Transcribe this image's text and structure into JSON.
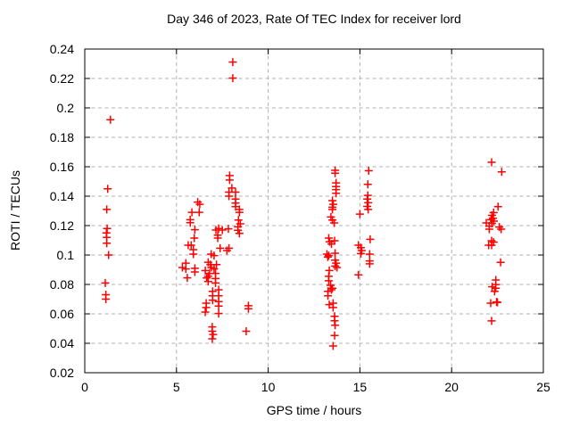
{
  "title": "Day 346 of 2023, Rate Of TEC Index for receiver lord",
  "colors": {
    "marker": "#ff0000",
    "axis": "#000000",
    "grid": "#b0b0b0",
    "background": "#ffffff"
  },
  "chart_data": {
    "type": "scatter",
    "title": "Day 346 of 2023, Rate Of TEC Index for receiver lord",
    "xlabel": "GPS time / hours",
    "ylabel": "ROTI / TECUs",
    "xlim": [
      0,
      25
    ],
    "ylim": [
      0.02,
      0.24
    ],
    "xticks": [
      0,
      5,
      10,
      15,
      20,
      25
    ],
    "xtick_labels": [
      "0",
      "5",
      "10",
      "15",
      "20",
      "25"
    ],
    "yticks": [
      0.02,
      0.04,
      0.06,
      0.08,
      0.1,
      0.12,
      0.14,
      0.16,
      0.18,
      0.2,
      0.22,
      0.24
    ],
    "ytick_labels": [
      "0.02",
      "0.04",
      "0.06",
      "0.08",
      "0.1",
      "0.12",
      "0.14",
      "0.16",
      "0.18",
      "0.2",
      "0.22",
      "0.24"
    ],
    "grid": true,
    "grid_style": "dashed",
    "legend": "none",
    "marker": {
      "shape": "plus",
      "color": "#ff0000",
      "size": 9
    },
    "series": [
      {
        "name": "ROTI",
        "points": [
          [
            1.4,
            0.192
          ],
          [
            1.25,
            0.145
          ],
          [
            1.2,
            0.131
          ],
          [
            1.22,
            0.118
          ],
          [
            1.18,
            0.115
          ],
          [
            1.2,
            0.112
          ],
          [
            1.2,
            0.108
          ],
          [
            1.3,
            0.1
          ],
          [
            1.12,
            0.081
          ],
          [
            1.15,
            0.073
          ],
          [
            1.15,
            0.07
          ],
          [
            6.16,
            0.136
          ],
          [
            6.27,
            0.1345
          ],
          [
            5.84,
            0.129
          ],
          [
            6.24,
            0.129
          ],
          [
            5.75,
            0.124
          ],
          [
            5.75,
            0.122
          ],
          [
            6.0,
            0.1172
          ],
          [
            5.97,
            0.1115
          ],
          [
            5.64,
            0.1067
          ],
          [
            5.8,
            0.1067
          ],
          [
            5.92,
            0.1036
          ],
          [
            5.92,
            0.1006
          ],
          [
            5.51,
            0.0945
          ],
          [
            5.32,
            0.0915
          ],
          [
            5.51,
            0.0905
          ],
          [
            5.59,
            0.0845
          ],
          [
            6.0,
            0.091
          ],
          [
            6.0,
            0.0885
          ],
          [
            6.89,
            0.1006
          ],
          [
            7.05,
            0.0996
          ],
          [
            6.73,
            0.0951
          ],
          [
            6.85,
            0.0935
          ],
          [
            7.18,
            0.0935
          ],
          [
            6.9,
            0.0915
          ],
          [
            6.57,
            0.0894
          ],
          [
            6.65,
            0.0844
          ],
          [
            6.73,
            0.0855
          ],
          [
            6.8,
            0.0875
          ],
          [
            7.05,
            0.0905
          ],
          [
            7.13,
            0.0875
          ],
          [
            6.73,
            0.082
          ],
          [
            7.13,
            0.084
          ],
          [
            7.13,
            0.081
          ],
          [
            6.97,
            0.0753
          ],
          [
            7.3,
            0.0764
          ],
          [
            6.97,
            0.0723
          ],
          [
            7.3,
            0.0723
          ],
          [
            6.97,
            0.0693
          ],
          [
            7.3,
            0.0683
          ],
          [
            6.62,
            0.0673
          ],
          [
            6.62,
            0.0643
          ],
          [
            7.3,
            0.0653
          ],
          [
            6.57,
            0.0612
          ],
          [
            7.3,
            0.0602
          ],
          [
            6.95,
            0.0511
          ],
          [
            6.95,
            0.0482
          ],
          [
            7.0,
            0.046
          ],
          [
            6.95,
            0.043
          ],
          [
            8.07,
            0.2311
          ],
          [
            8.07,
            0.2202
          ],
          [
            7.9,
            0.154
          ],
          [
            7.9,
            0.151
          ],
          [
            8.02,
            0.1455
          ],
          [
            7.86,
            0.1427
          ],
          [
            8.22,
            0.1427
          ],
          [
            7.86,
            0.14
          ],
          [
            8.22,
            0.138
          ],
          [
            8.22,
            0.1353
          ],
          [
            8.22,
            0.1329
          ],
          [
            8.43,
            0.131
          ],
          [
            8.43,
            0.129
          ],
          [
            8.38,
            0.1238
          ],
          [
            8.48,
            0.1212
          ],
          [
            8.35,
            0.1192
          ],
          [
            8.35,
            0.1168
          ],
          [
            8.43,
            0.1147
          ],
          [
            7.15,
            0.117
          ],
          [
            7.3,
            0.118
          ],
          [
            7.5,
            0.117
          ],
          [
            7.83,
            0.1178
          ],
          [
            7.25,
            0.1135
          ],
          [
            7.25,
            0.1115
          ],
          [
            7.38,
            0.1046
          ],
          [
            7.86,
            0.1046
          ],
          [
            7.75,
            0.103
          ],
          [
            8.92,
            0.0655
          ],
          [
            8.92,
            0.0635
          ],
          [
            8.8,
            0.0482
          ],
          [
            13.65,
            0.1576
          ],
          [
            13.65,
            0.1556
          ],
          [
            13.7,
            0.149
          ],
          [
            13.7,
            0.1465
          ],
          [
            13.7,
            0.1445
          ],
          [
            13.7,
            0.142
          ],
          [
            13.5,
            0.137
          ],
          [
            13.55,
            0.1345
          ],
          [
            13.5,
            0.1325
          ],
          [
            13.5,
            0.131
          ],
          [
            13.42,
            0.1258
          ],
          [
            13.5,
            0.1238
          ],
          [
            13.6,
            0.1218
          ],
          [
            13.3,
            0.1115
          ],
          [
            13.35,
            0.109
          ],
          [
            13.62,
            0.1097
          ],
          [
            13.45,
            0.1075
          ],
          [
            13.2,
            0.1006
          ],
          [
            13.3,
            0.0996
          ],
          [
            13.25,
            0.0986
          ],
          [
            13.65,
            0.1012
          ],
          [
            13.65,
            0.0965
          ],
          [
            13.7,
            0.0945
          ],
          [
            13.65,
            0.0925
          ],
          [
            13.75,
            0.0915
          ],
          [
            13.33,
            0.0895
          ],
          [
            13.3,
            0.0855
          ],
          [
            13.3,
            0.0825
          ],
          [
            13.4,
            0.0794
          ],
          [
            13.5,
            0.0774
          ],
          [
            13.45,
            0.0764
          ],
          [
            13.26,
            0.0753
          ],
          [
            13.26,
            0.0723
          ],
          [
            13.54,
            0.0673
          ],
          [
            13.33,
            0.0663
          ],
          [
            13.54,
            0.0643
          ],
          [
            13.62,
            0.0583
          ],
          [
            13.62,
            0.0553
          ],
          [
            13.65,
            0.0523
          ],
          [
            13.62,
            0.0453
          ],
          [
            13.54,
            0.0382
          ],
          [
            15.48,
            0.1573
          ],
          [
            15.43,
            0.148
          ],
          [
            15.43,
            0.1405
          ],
          [
            15.4,
            0.138
          ],
          [
            15.45,
            0.1355
          ],
          [
            15.4,
            0.133
          ],
          [
            15.45,
            0.131
          ],
          [
            15.0,
            0.1278
          ],
          [
            15.56,
            0.1107
          ],
          [
            14.92,
            0.1067
          ],
          [
            15.05,
            0.105
          ],
          [
            15.1,
            0.103
          ],
          [
            15.05,
            0.101
          ],
          [
            15.53,
            0.1006
          ],
          [
            15.53,
            0.096
          ],
          [
            15.53,
            0.094
          ],
          [
            14.92,
            0.0865
          ],
          [
            22.18,
            0.163
          ],
          [
            22.73,
            0.1565
          ],
          [
            22.53,
            0.1329
          ],
          [
            22.29,
            0.1289
          ],
          [
            22.2,
            0.127
          ],
          [
            22.25,
            0.125
          ],
          [
            22.15,
            0.124
          ],
          [
            22.3,
            0.123
          ],
          [
            22.2,
            0.1215
          ],
          [
            21.89,
            0.1218
          ],
          [
            22.05,
            0.1196
          ],
          [
            22.05,
            0.1176
          ],
          [
            22.6,
            0.119
          ],
          [
            22.7,
            0.1176
          ],
          [
            22.18,
            0.1097
          ],
          [
            22.29,
            0.1087
          ],
          [
            22.18,
            0.1067
          ],
          [
            22.02,
            0.1067
          ],
          [
            22.67,
            0.095
          ],
          [
            22.41,
            0.083
          ],
          [
            22.41,
            0.0799
          ],
          [
            22.21,
            0.0784
          ],
          [
            22.41,
            0.0774
          ],
          [
            22.34,
            0.0753
          ],
          [
            22.13,
            0.0673
          ],
          [
            22.45,
            0.0681
          ],
          [
            22.5,
            0.0678
          ],
          [
            22.18,
            0.0552
          ]
        ]
      }
    ]
  }
}
